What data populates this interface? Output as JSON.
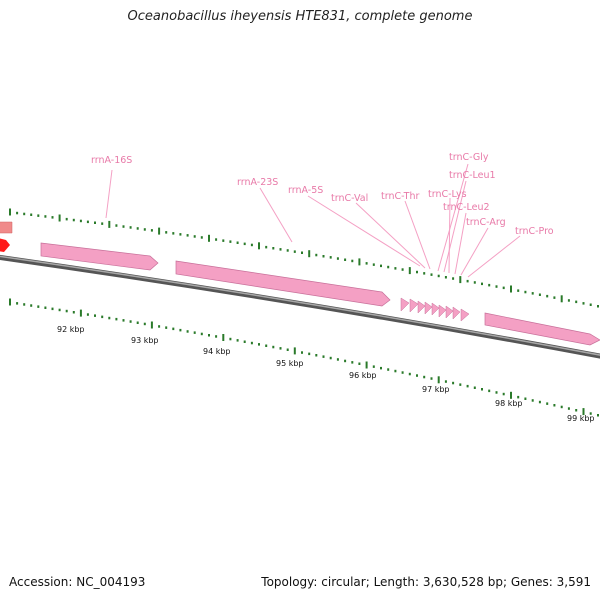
{
  "title": "Oceanobacillus iheyensis HTE831, complete genome",
  "colors": {
    "rrna_feature": "#f4a0c4",
    "rrna_label": "#e87aa8",
    "tick_green": "#2a7a2a",
    "backbone": "#8a8a8a",
    "red_feature": "#ff1a1a",
    "salmon_feature": "#f08080"
  },
  "kbp_ticks": [
    "92 kbp",
    "93 kbp",
    "94 kbp",
    "95 kbp",
    "96 kbp",
    "97 kbp",
    "98 kbp",
    "99 kbp"
  ],
  "feature_labels": [
    "rrnA-16S",
    "rrnA-23S",
    "rrnA-5S",
    "trnC-Val",
    "trnC-Thr",
    "trnC-Gly",
    "trnC-Leu1",
    "trnC-Lys",
    "trnC-Leu2",
    "trnC-Arg",
    "trnC-Pro"
  ],
  "footer": {
    "accession_label": "Accession:",
    "accession": "NC_004193",
    "topology_label": "Topology:",
    "topology": "circular",
    "length_label": "Length:",
    "length": "3,630,528 bp",
    "genes_label": "Genes:",
    "genes": "3,591"
  }
}
